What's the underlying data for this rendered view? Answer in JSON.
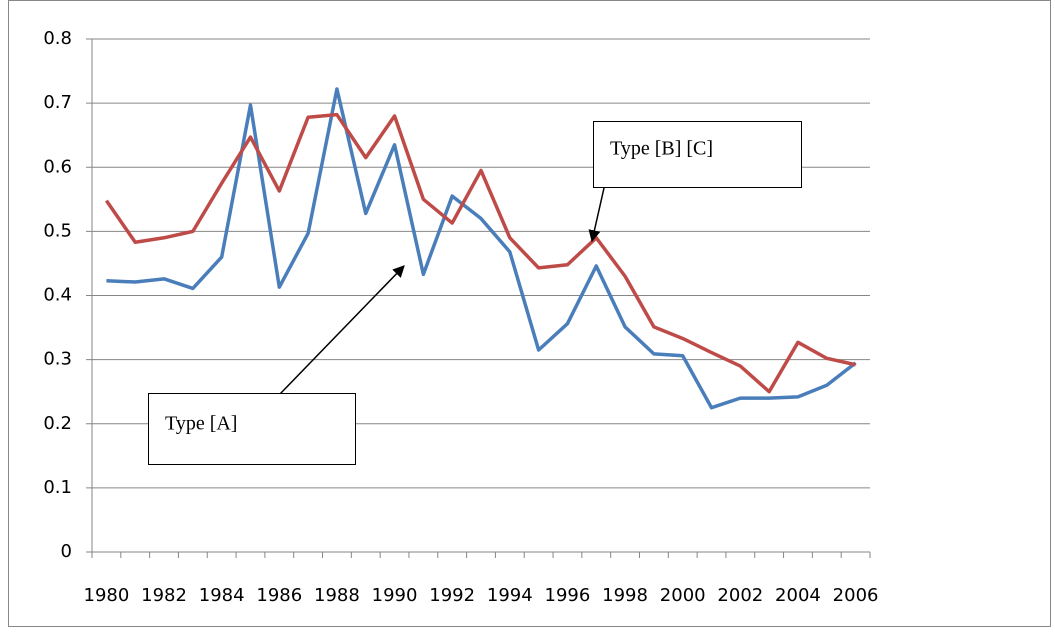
{
  "chart_data": {
    "type": "line",
    "categories": [
      "1980",
      null,
      "1982",
      null,
      "1984",
      null,
      "1986",
      null,
      "1988",
      null,
      "1990",
      null,
      "1992",
      null,
      "1994",
      null,
      "1996",
      null,
      "1998",
      null,
      "2000",
      null,
      "2002",
      null,
      "2004",
      null,
      "2006"
    ],
    "series": [
      {
        "color": "#4a7ebb",
        "values": [
          0.423,
          0.421,
          0.426,
          0.411,
          0.46,
          0.697,
          0.413,
          0.497,
          0.722,
          0.528,
          0.635,
          0.433,
          0.555,
          0.52,
          0.468,
          0.315,
          0.356,
          0.446,
          0.351,
          0.309,
          0.306,
          0.225,
          0.24,
          0.24,
          0.242,
          0.26,
          0.295
        ]
      },
      {
        "color": "#be4b48",
        "values": [
          0.548,
          0.483,
          0.49,
          0.5,
          0.575,
          0.647,
          0.563,
          0.678,
          0.682,
          0.615,
          0.68,
          0.55,
          0.513,
          0.595,
          0.49,
          0.443,
          0.448,
          0.49,
          0.43,
          0.351,
          0.333,
          0.311,
          0.29,
          0.25,
          0.327,
          0.302,
          0.292
        ]
      }
    ],
    "ylim": [
      0,
      0.8
    ],
    "yticks": [
      0,
      0.1,
      0.2,
      0.3,
      0.4,
      0.5,
      0.6,
      0.7,
      0.8
    ],
    "grid": true,
    "annotations": [
      "Type [A]",
      "Type [B] [C]"
    ]
  }
}
